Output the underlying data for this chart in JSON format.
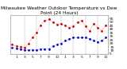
{
  "title": "Milwaukee Weather Outdoor Temperature vs Dew Point (24 Hours)",
  "temp_color": "#cc0000",
  "dew_color": "#0000cc",
  "bg_color": "#ffffff",
  "grid_color": "#999999",
  "hours": [
    0,
    1,
    2,
    3,
    4,
    5,
    6,
    7,
    8,
    9,
    10,
    11,
    12,
    13,
    14,
    15,
    16,
    17,
    18,
    19,
    20,
    21,
    22,
    23
  ],
  "temp": [
    18,
    16,
    15,
    14,
    20,
    28,
    35,
    46,
    52,
    54,
    50,
    47,
    48,
    45,
    42,
    44,
    50,
    52,
    44,
    38,
    48,
    42,
    38,
    46
  ],
  "dew": [
    14,
    13,
    12,
    10,
    10,
    11,
    10,
    12,
    12,
    12,
    16,
    18,
    20,
    24,
    26,
    28,
    28,
    28,
    28,
    26,
    24,
    22,
    24,
    28
  ],
  "ylim": [
    5,
    60
  ],
  "ytick_labels": [
    "5",
    "10",
    "15",
    "20",
    "25",
    "30",
    "35",
    "40",
    "45",
    "50",
    "55"
  ],
  "ytick_vals": [
    5,
    10,
    15,
    20,
    25,
    30,
    35,
    40,
    45,
    50,
    55
  ],
  "xlim": [
    -0.5,
    23.5
  ],
  "marker_size": 2.0,
  "title_fontsize": 4.2,
  "tick_fontsize": 3.2,
  "dashed_vlines": [
    3,
    6,
    9,
    12,
    15,
    18,
    21
  ]
}
